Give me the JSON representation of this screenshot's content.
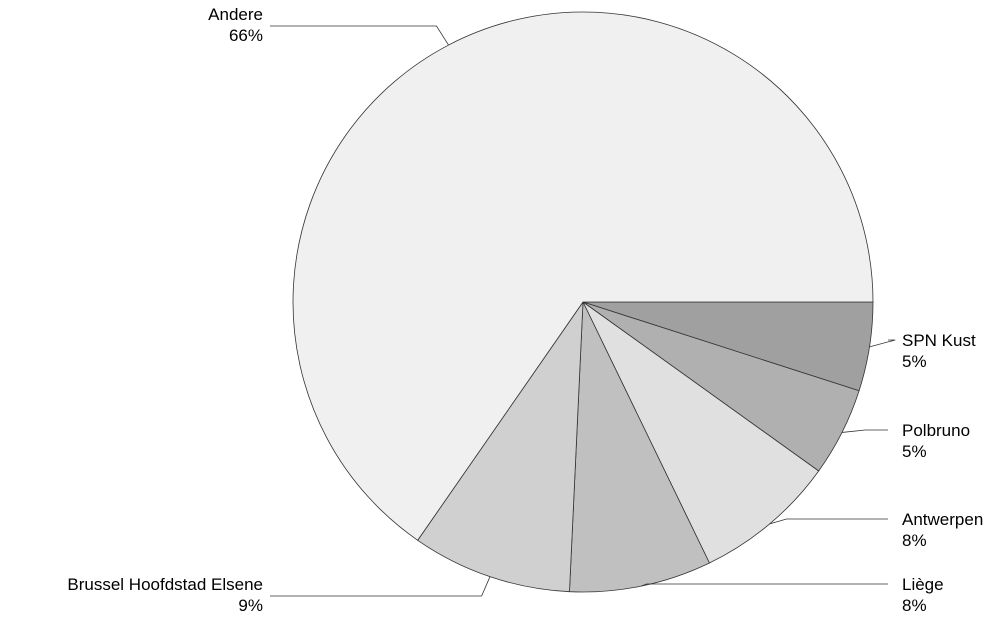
{
  "chart_data": {
    "type": "pie",
    "title": "",
    "start_angle_deg": 0,
    "direction": "clockwise",
    "slices": [
      {
        "name": "SPN Kust",
        "percent_label": "5%",
        "value": 5,
        "color": "#a0a0a0"
      },
      {
        "name": "Polbruno",
        "percent_label": "5%",
        "value": 5,
        "color": "#b0b0b0"
      },
      {
        "name": "Antwerpen",
        "percent_label": "8%",
        "value": 8,
        "color": "#e0e0e0"
      },
      {
        "name": "Liège",
        "percent_label": "8%",
        "value": 8,
        "color": "#c0c0c0"
      },
      {
        "name": "Brussel Hoofdstad Elsene",
        "percent_label": "9%",
        "value": 9,
        "color": "#d0d0d0"
      },
      {
        "name": "Andere",
        "percent_label": "66%",
        "value": 66,
        "color": "#f0f0f0"
      }
    ]
  }
}
